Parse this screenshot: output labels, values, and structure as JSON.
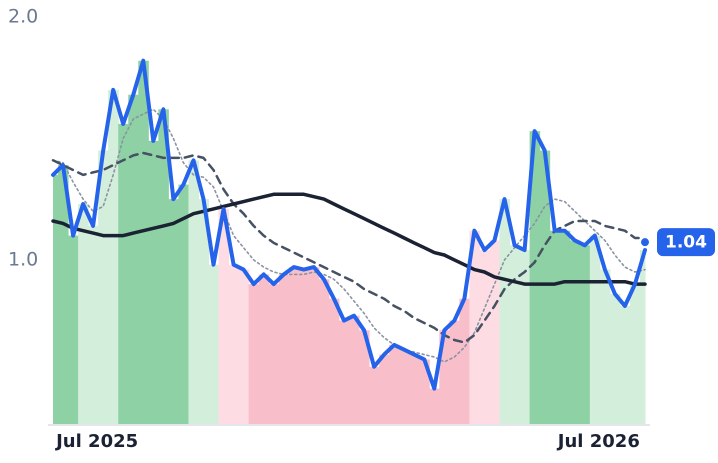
{
  "chart_data": {
    "type": "line",
    "categories": [
      null,
      null,
      null,
      null,
      "Jul 2025",
      null,
      null,
      null,
      null,
      null,
      null,
      null,
      null,
      null,
      null,
      null,
      null,
      null,
      null,
      null,
      null,
      null,
      null,
      null,
      null,
      null,
      null,
      null,
      null,
      null,
      null,
      null,
      null,
      null,
      null,
      null,
      null,
      null,
      null,
      null,
      null,
      null,
      null,
      null,
      null,
      null,
      null,
      null,
      null,
      null,
      null,
      null,
      null,
      null,
      "Jul 2026",
      null,
      null,
      null,
      null,
      null
    ],
    "ylim": [
      0.32,
      2.0
    ],
    "yticks": [
      {
        "value": 1,
        "label": "1.0"
      },
      {
        "value": 2,
        "label": "2.0"
      }
    ],
    "series": [
      {
        "color": "#2563eb",
        "style": "solid",
        "width": 4,
        "fill_colors": [
          "#8ed1a4",
          "#8ed1a4",
          "#8ed1a4",
          "#d3eeda",
          "#d3eeda",
          "#d3eeda",
          "#d3eeda",
          "#8ed1a4",
          "#8ed1a4",
          "#8ed1a4",
          "#8ed1a4",
          "#8ed1a4",
          "#8ed1a4",
          "#8ed1a4",
          "#d3eeda",
          "#d3eeda",
          "#d3eeda",
          "#fddde3",
          "#fddde3",
          "#fddde3",
          "#f8bfca",
          "#f8bfca",
          "#f8bfca",
          "#f8bfca",
          "#f8bfca",
          "#f8bfca",
          "#f8bfca",
          "#f8bfca",
          "#f8bfca",
          "#f8bfca",
          "#f8bfca",
          "#f8bfca",
          "#f8bfca",
          "#f8bfca",
          "#f8bfca",
          "#f8bfca",
          "#f8bfca",
          "#f8bfca",
          "#f8bfca",
          "#f8bfca",
          "#f8bfca",
          "#f8bfca",
          "#fddde3",
          "#fddde3",
          "#fddde3",
          "#d3eeda",
          "#d3eeda",
          "#d3eeda",
          "#8ed1a4",
          "#8ed1a4",
          "#8ed1a4",
          "#8ed1a4",
          "#8ed1a4",
          "#8ed1a4",
          "#d3eeda",
          "#d3eeda",
          "#d3eeda",
          "#d3eeda",
          "#d3eeda",
          "#d3eeda"
        ],
        "values": [
          1.35,
          1.39,
          1.1,
          1.23,
          1.14,
          1.45,
          1.7,
          1.56,
          1.68,
          1.82,
          1.49,
          1.62,
          1.25,
          1.31,
          1.41,
          1.25,
          0.98,
          1.21,
          0.98,
          0.96,
          0.9,
          0.94,
          0.9,
          0.94,
          0.97,
          0.96,
          0.97,
          0.92,
          0.84,
          0.75,
          0.77,
          0.71,
          0.56,
          0.61,
          0.65,
          0.63,
          0.61,
          0.59,
          0.47,
          0.71,
          0.75,
          0.84,
          1.12,
          1.04,
          1.08,
          1.25,
          1.06,
          1.04,
          1.53,
          1.45,
          1.12,
          1.12,
          1.08,
          1.06,
          1.1,
          0.96,
          0.86,
          0.81,
          0.9,
          1.04
        ]
      },
      {
        "color": "#8a93a3",
        "style": "dotted",
        "width": 1.6,
        "values": [
          1.41,
          1.4,
          1.32,
          1.25,
          1.2,
          1.22,
          1.35,
          1.5,
          1.58,
          1.6,
          1.62,
          1.58,
          1.5,
          1.4,
          1.35,
          1.34,
          1.3,
          1.2,
          1.1,
          1.05,
          1.0,
          0.97,
          0.95,
          0.94,
          0.94,
          0.94,
          0.95,
          0.94,
          0.92,
          0.88,
          0.83,
          0.78,
          0.72,
          0.68,
          0.65,
          0.63,
          0.62,
          0.61,
          0.6,
          0.58,
          0.6,
          0.64,
          0.7,
          0.8,
          0.9,
          1.0,
          1.05,
          1.1,
          1.15,
          1.22,
          1.25,
          1.24,
          1.2,
          1.16,
          1.12,
          1.08,
          1.02,
          0.97,
          0.95,
          0.96
        ]
      },
      {
        "color": "#465163",
        "style": "dashed",
        "width": 2.5,
        "values": [
          1.41,
          1.39,
          1.37,
          1.35,
          1.36,
          1.37,
          1.39,
          1.41,
          1.43,
          1.44,
          1.43,
          1.42,
          1.42,
          1.42,
          1.43,
          1.42,
          1.37,
          1.29,
          1.23,
          1.19,
          1.14,
          1.1,
          1.07,
          1.05,
          1.03,
          1.01,
          0.99,
          0.97,
          0.95,
          0.93,
          0.91,
          0.88,
          0.86,
          0.84,
          0.81,
          0.79,
          0.76,
          0.74,
          0.72,
          0.69,
          0.67,
          0.66,
          0.69,
          0.75,
          0.81,
          0.88,
          0.92,
          0.95,
          0.99,
          1.06,
          1.12,
          1.14,
          1.16,
          1.16,
          1.16,
          1.14,
          1.13,
          1.12,
          1.09,
          1.09
        ]
      },
      {
        "color": "#1a2233",
        "style": "solid",
        "width": 3.5,
        "values": [
          1.16,
          1.15,
          1.13,
          1.12,
          1.11,
          1.1,
          1.1,
          1.1,
          1.11,
          1.12,
          1.13,
          1.14,
          1.15,
          1.17,
          1.19,
          1.2,
          1.21,
          1.22,
          1.23,
          1.24,
          1.25,
          1.26,
          1.27,
          1.27,
          1.27,
          1.27,
          1.26,
          1.25,
          1.23,
          1.21,
          1.19,
          1.17,
          1.15,
          1.13,
          1.11,
          1.09,
          1.07,
          1.05,
          1.03,
          1.02,
          1.0,
          0.98,
          0.96,
          0.95,
          0.93,
          0.92,
          0.91,
          0.9,
          0.9,
          0.9,
          0.9,
          0.91,
          0.91,
          0.91,
          0.91,
          0.91,
          0.91,
          0.91,
          0.9,
          0.9
        ]
      }
    ]
  }
}
